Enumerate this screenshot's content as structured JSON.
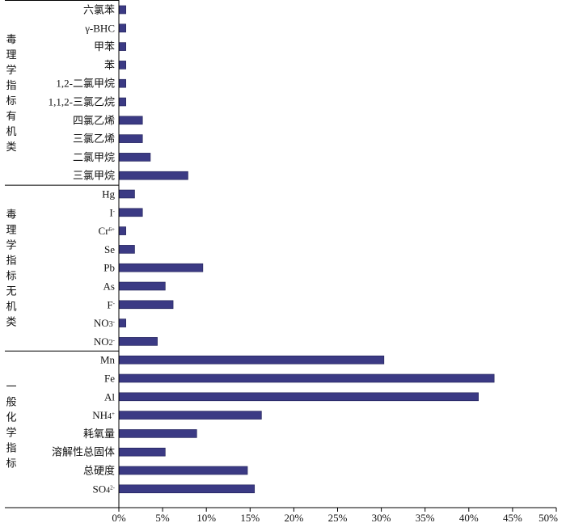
{
  "chart_data": {
    "type": "bar",
    "orientation": "horizontal",
    "title": "",
    "xlabel": "",
    "ylabel": "",
    "xlim": [
      0,
      50
    ],
    "x_ticks": [
      "0%",
      "5%",
      "10%",
      "15%",
      "20%",
      "25%",
      "30%",
      "35%",
      "40%",
      "45%",
      "50%"
    ],
    "grid": false,
    "legend": "none",
    "bar_color": "#3b3a84",
    "groups": [
      {
        "name": "毒理学指标有机类",
        "items": [
          {
            "label": "六氯苯",
            "value": 0.8
          },
          {
            "label": "γ-BHC",
            "value": 0.8
          },
          {
            "label": "甲苯",
            "value": 0.8
          },
          {
            "label": "苯",
            "value": 0.8
          },
          {
            "label": "1,2-二氯甲烷",
            "value": 0.8
          },
          {
            "label": "1,1,2-三氯乙烷",
            "value": 0.8
          },
          {
            "label": "四氯乙烯",
            "value": 2.7
          },
          {
            "label": "三氯乙烯",
            "value": 2.7
          },
          {
            "label": "二氯甲烷",
            "value": 3.6
          },
          {
            "label": "三氯甲烷",
            "value": 7.9
          }
        ]
      },
      {
        "name": "毒理学指标无机类",
        "items": [
          {
            "label": "Hg",
            "value": 1.8
          },
          {
            "label": "I⁻",
            "value": 2.7
          },
          {
            "label": "Cr⁶⁺",
            "value": 0.8
          },
          {
            "label": "Se",
            "value": 1.8
          },
          {
            "label": "Pb",
            "value": 9.6
          },
          {
            "label": "As",
            "value": 5.3
          },
          {
            "label": "F⁻",
            "value": 6.2
          },
          {
            "label": "NO₃⁻",
            "value": 0.8
          },
          {
            "label": "NO₂⁻",
            "value": 4.4
          }
        ]
      },
      {
        "name": "一般化学指标",
        "items": [
          {
            "label": "Mn",
            "value": 30.3
          },
          {
            "label": "Fe",
            "value": 42.9
          },
          {
            "label": "Al",
            "value": 41.1
          },
          {
            "label": "NH₄⁺",
            "value": 16.3
          },
          {
            "label": "耗氧量",
            "value": 8.9
          },
          {
            "label": "溶解性总固体",
            "value": 5.3
          },
          {
            "label": "总硬度",
            "value": 14.7
          },
          {
            "label": "SO₄²⁻",
            "value": 15.5
          }
        ]
      }
    ]
  }
}
